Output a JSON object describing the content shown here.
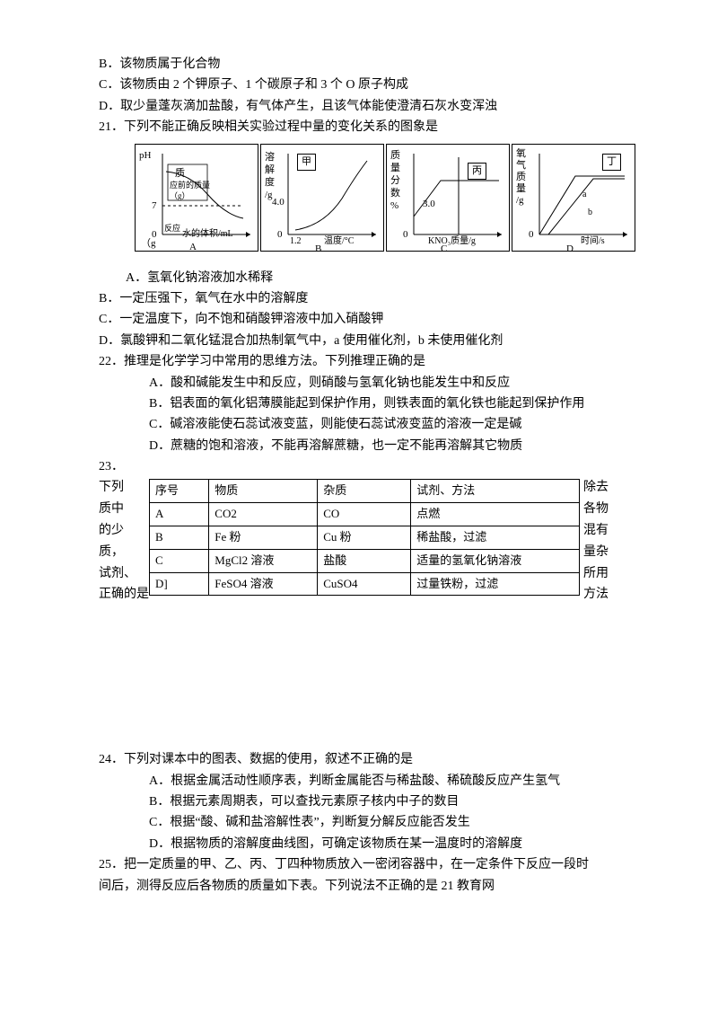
{
  "options_pre": {
    "B": "B．该物质属于化合物",
    "C": "C．该物质由 2 个钾原子、1 个碳原子和 3 个 O 原子构成",
    "D": "D．取少量蓬灰滴加盐酸，有气体产生，且该气体能使澄清石灰水变浑浊"
  },
  "q21": {
    "stem": "21．下列不能正确反映相关实验过程中量的变化关系的图象是",
    "charts": {
      "A": {
        "y_label": "pH",
        "mid_text1": "质",
        "mid_text2": "应前的质量",
        "mid_text3": "（g）",
        "tick_y": "7",
        "tick_0": "0",
        "bottom_left": "（g",
        "x_label": "水的体积/mL",
        "bottom_label": "A",
        "small_mark": "反应"
      },
      "B": {
        "y_label1": "溶",
        "y_label2": "解",
        "y_label3": "度",
        "y_label4": "/g",
        "tick_y": "4.0",
        "tick_0": "0",
        "tick_x": "1.2",
        "x_label": "温度/°C",
        "bottom_label": "B",
        "title": "甲"
      },
      "C": {
        "y_label1": "质",
        "y_label2": "量",
        "y_label3": "分",
        "y_label4": "数",
        "y_label5": "%",
        "tick_y": "3.0",
        "tick_0": "0",
        "x_label": "KNO₃质量/g",
        "title": "丙",
        "bottom_label": "C"
      },
      "D": {
        "y_label1": "氧",
        "y_label2": "气",
        "y_label3": "质",
        "y_label4": "量",
        "y_label5": "/g",
        "tick_0": "0",
        "x_label": "时间/s",
        "title": "丁",
        "line_a": "a",
        "line_b": "b",
        "bottom_label": "D"
      }
    },
    "opts": {
      "A": "A．氢氧化钠溶液加水稀释",
      "B": "B．一定压强下，氧气在水中的溶解度",
      "C": "C．一定温度下，向不饱和硝酸钾溶液中加入硝酸钾",
      "D": "D．氯酸钾和二氧化锰混合加热制氧气中，a 使用催化剂，b 未使用催化剂"
    }
  },
  "q22": {
    "stem": "22．推理是化学学习中常用的思维方法。下列推理正确的是",
    "opts": {
      "A": "A．酸和碱能发生中和反应，则硝酸与氢氧化钠也能发生中和反应",
      "B": "B．铝表面的氧化铝薄膜能起到保护作用，则铁表面的氧化铁也能起到保护作用",
      "C": "C．碱溶液能使石蕊试液变蓝，则能使石蕊试液变蓝的溶液一定是碱",
      "D": "D．蔗糖的饱和溶液，不能再溶解蔗糖，也一定不能再溶解其它物质"
    }
  },
  "q23": {
    "num": "23．",
    "left": [
      "下列",
      "质中",
      "的少",
      "质，",
      "试剂、",
      "正确的是"
    ],
    "right": [
      "除去",
      "各物",
      "混有",
      "量杂",
      "所用",
      "方法"
    ],
    "table": {
      "headers": [
        "序号",
        "物质",
        "杂质",
        "试剂、方法"
      ],
      "rows": [
        [
          "A",
          "CO2",
          "CO",
          "点燃"
        ],
        [
          "B",
          "Fe 粉",
          "Cu 粉",
          "稀盐酸，过滤"
        ],
        [
          "C",
          "MgCl2 溶液",
          "盐酸",
          "适量的氢氧化钠溶液"
        ],
        [
          "D]",
          "FeSO4 溶液",
          "CuSO4",
          "过量铁粉，过滤"
        ]
      ],
      "col_widths": [
        "60px",
        "120px",
        "100px",
        "200px"
      ]
    }
  },
  "q24": {
    "stem": "24．下列对课本中的图表、数据的使用，叙述不正确的是",
    "opts": {
      "A": "A．根据金属活动性顺序表，判断金属能否与稀盐酸、稀硫酸反应产生氢气",
      "B": "B．根据元素周期表，可以查找元素原子核内中子的数目",
      "C": "C．根据“酸、碱和盐溶解性表”，判断复分解反应能否发生",
      "D": "D．根据物质的溶解度曲线图，可确定该物质在某一温度时的溶解度"
    }
  },
  "q25": {
    "stem1": "25．把一定质量的甲、乙、丙、丁四种物质放入一密闭容器中，在一定条件下反应一段时",
    "stem2": "间后，测得反应后各物质的质量如下表。下列说法不正确的是 21 教育网"
  },
  "style": {
    "chart_border": "#000000",
    "bg": "#ffffff",
    "font_size_body": 14,
    "font_size_chart": 11
  }
}
